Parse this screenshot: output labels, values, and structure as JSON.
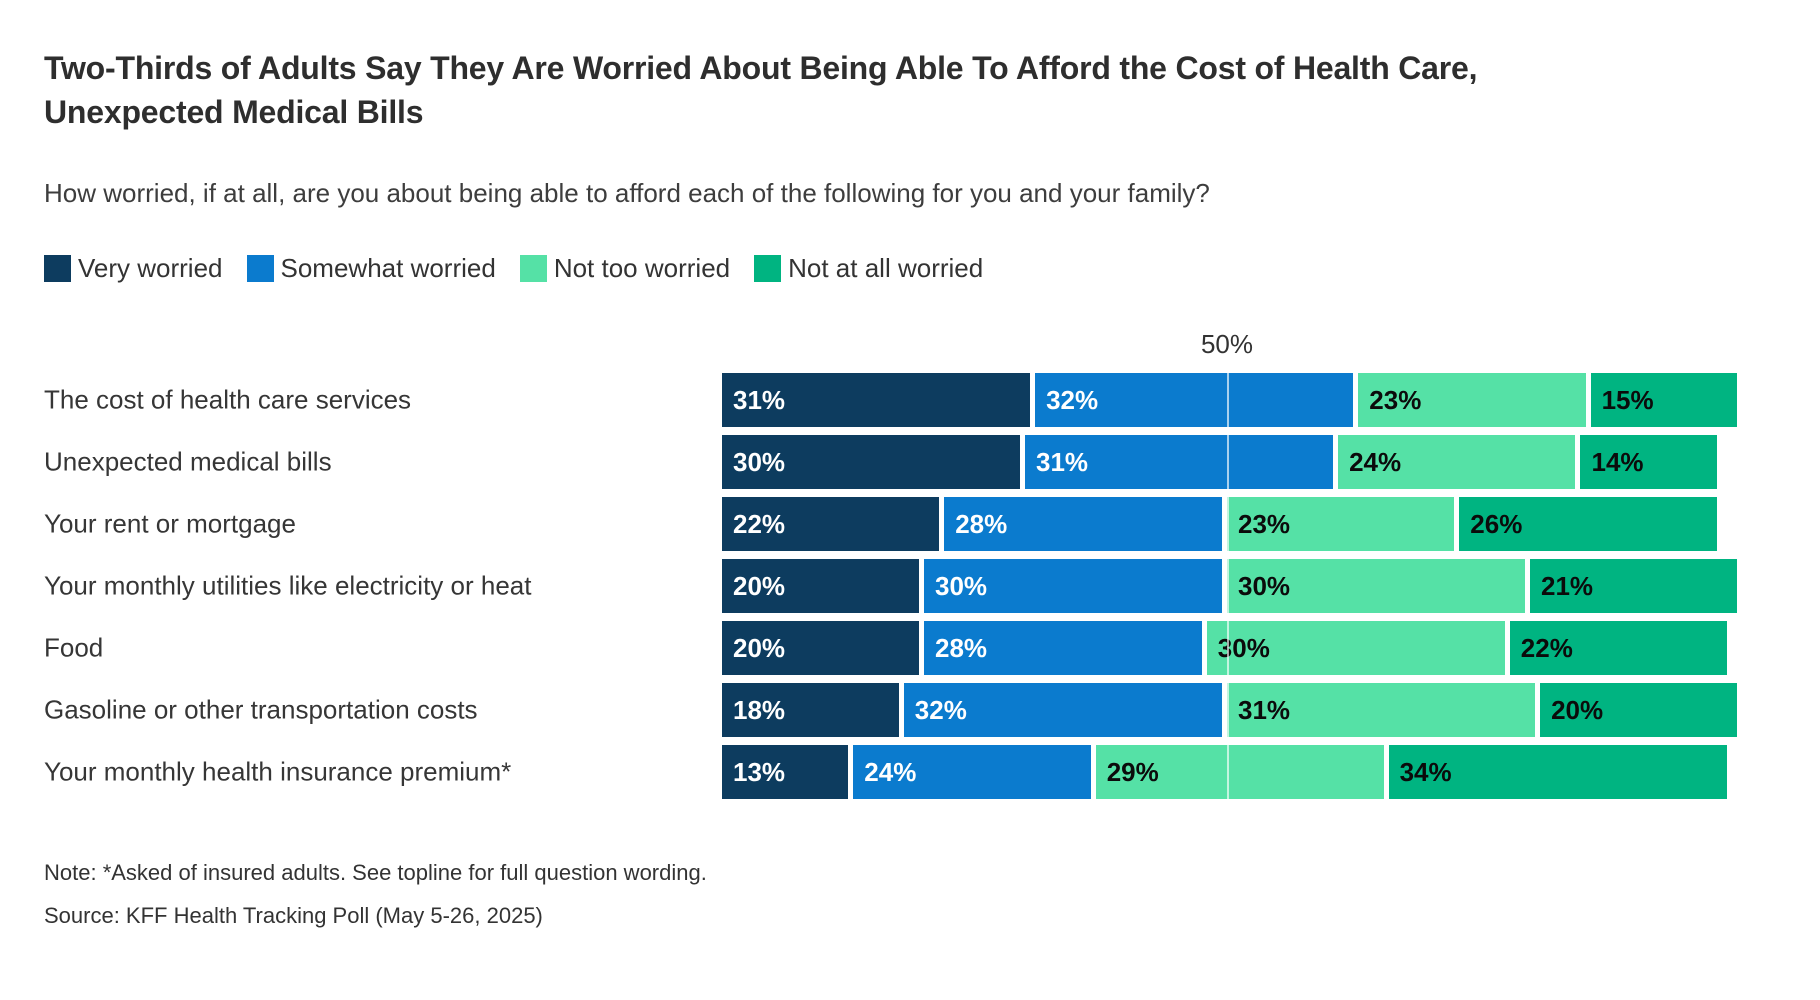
{
  "title": "Two-Thirds of Adults Say They Are Worried About Being Able To Afford the Cost of Health Care, Unexpected Medical Bills",
  "subtitle": "How worried, if at all, are you about being able to afford each of the following for you and your family?",
  "axis": {
    "tick_label": "50%",
    "tick_value": 50
  },
  "chart_data": {
    "type": "bar",
    "stacked": true,
    "orientation": "horizontal",
    "xlim": [
      0,
      100
    ],
    "gridline_value": 50,
    "gridline_label": "50%",
    "legend_position": "top",
    "value_suffix": "%",
    "categories": [
      "The cost of health care services",
      "Unexpected medical bills",
      "Your rent or mortgage",
      "Your monthly utilities like electricity or heat",
      "Food",
      "Gasoline or other transportation costs",
      "Your monthly health insurance premium*"
    ],
    "series": [
      {
        "name": "Very worried",
        "color": "#0d3c5f",
        "values": [
          31,
          30,
          22,
          20,
          20,
          18,
          13
        ]
      },
      {
        "name": "Somewhat worried",
        "color": "#0b7bce",
        "values": [
          32,
          31,
          28,
          30,
          28,
          32,
          24
        ]
      },
      {
        "name": "Not too worried",
        "color": "#55e1a6",
        "values": [
          23,
          24,
          23,
          30,
          30,
          31,
          29
        ]
      },
      {
        "name": "Not at all worried",
        "color": "#00b481",
        "values": [
          15,
          14,
          26,
          21,
          22,
          20,
          34
        ]
      }
    ]
  },
  "note": "Note: *Asked of insured adults. See topline for full question wording.",
  "source": "Source: KFF Health Tracking Poll (May 5-26, 2025)"
}
